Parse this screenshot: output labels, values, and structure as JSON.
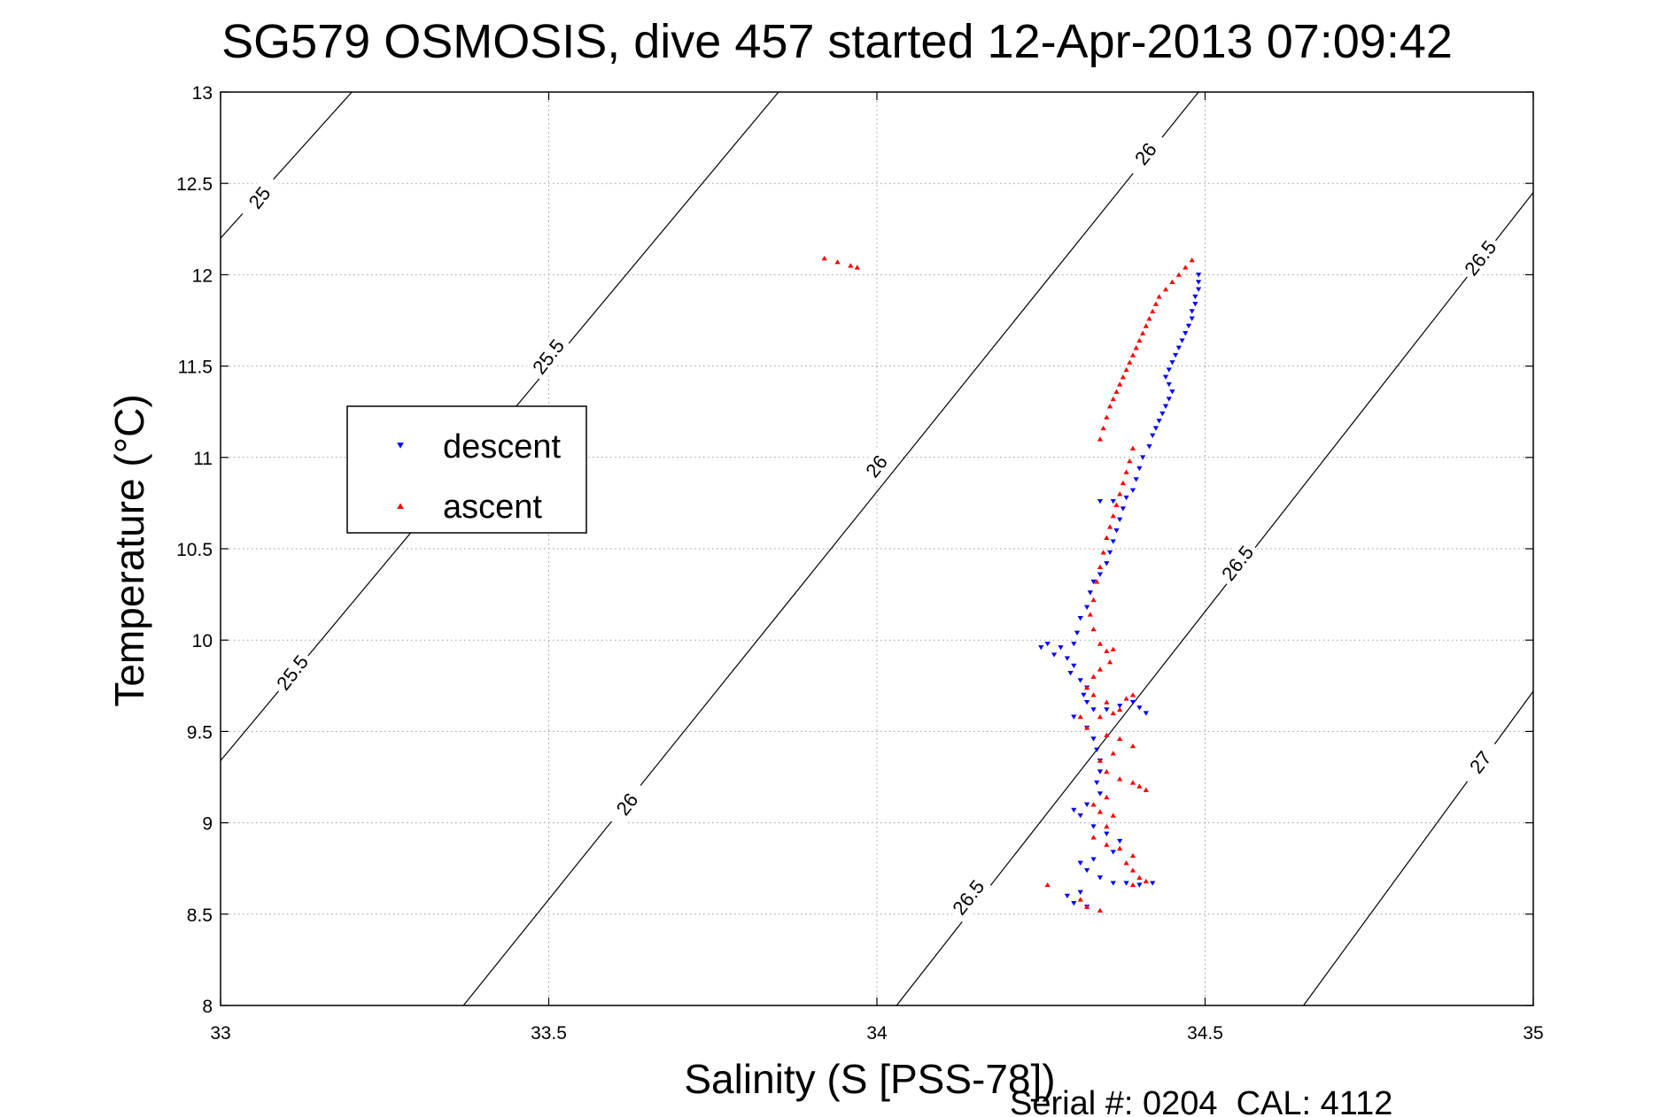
{
  "chart_data": {
    "type": "scatter",
    "title": "SG579 OSMOSIS, dive 457 started 12-Apr-2013 07:09:42",
    "xlabel": "Salinity (S [PSS-78])",
    "ylabel": "Temperature (°C)",
    "footer": "Serial #: 0204  CAL: 4112",
    "xlim": [
      33,
      35
    ],
    "ylim": [
      8,
      13
    ],
    "xticks": [
      33,
      33.5,
      34,
      34.5,
      35
    ],
    "xtick_labels": [
      "33",
      "33.5",
      "34",
      "34.5",
      "35"
    ],
    "yticks": [
      8,
      8.5,
      9,
      9.5,
      10,
      10.5,
      11,
      11.5,
      12,
      12.5,
      13
    ],
    "ytick_labels": [
      "8",
      "8.5",
      "9",
      "9.5",
      "10",
      "10.5",
      "11",
      "11.5",
      "12",
      "12.5",
      "13"
    ],
    "grid": true,
    "legend": {
      "placement": "upper-left"
    },
    "series": [
      {
        "name": "descent",
        "color": "#0000ff",
        "marker": "triangle-down",
        "points": [
          [
            34.49,
            12.0
          ],
          [
            34.49,
            11.96
          ],
          [
            34.49,
            11.92
          ],
          [
            34.485,
            11.88
          ],
          [
            34.485,
            11.84
          ],
          [
            34.48,
            11.8
          ],
          [
            34.48,
            11.76
          ],
          [
            34.475,
            11.72
          ],
          [
            34.47,
            11.68
          ],
          [
            34.465,
            11.64
          ],
          [
            34.46,
            11.6
          ],
          [
            34.455,
            11.56
          ],
          [
            34.45,
            11.52
          ],
          [
            34.445,
            11.48
          ],
          [
            34.44,
            11.44
          ],
          [
            34.445,
            11.4
          ],
          [
            34.45,
            11.36
          ],
          [
            34.445,
            11.32
          ],
          [
            34.44,
            11.28
          ],
          [
            34.435,
            11.24
          ],
          [
            34.43,
            11.2
          ],
          [
            34.425,
            11.16
          ],
          [
            34.42,
            11.12
          ],
          [
            34.415,
            11.06
          ],
          [
            34.405,
            11.0
          ],
          [
            34.4,
            10.94
          ],
          [
            34.395,
            10.88
          ],
          [
            34.39,
            10.82
          ],
          [
            34.38,
            10.78
          ],
          [
            34.36,
            10.76
          ],
          [
            34.34,
            10.76
          ],
          [
            34.375,
            10.72
          ],
          [
            34.37,
            10.66
          ],
          [
            34.365,
            10.6
          ],
          [
            34.36,
            10.54
          ],
          [
            34.355,
            10.48
          ],
          [
            34.35,
            10.42
          ],
          [
            34.34,
            10.36
          ],
          [
            34.33,
            10.32
          ],
          [
            34.325,
            10.26
          ],
          [
            34.32,
            10.18
          ],
          [
            34.31,
            10.12
          ],
          [
            34.305,
            10.04
          ],
          [
            34.3,
            9.98
          ],
          [
            34.28,
            9.96
          ],
          [
            34.26,
            9.98
          ],
          [
            34.25,
            9.96
          ],
          [
            34.27,
            9.92
          ],
          [
            34.29,
            9.9
          ],
          [
            34.3,
            9.86
          ],
          [
            34.295,
            9.82
          ],
          [
            34.31,
            9.78
          ],
          [
            34.32,
            9.74
          ],
          [
            34.315,
            9.7
          ],
          [
            34.32,
            9.66
          ],
          [
            34.33,
            9.62
          ],
          [
            34.35,
            9.62
          ],
          [
            34.37,
            9.64
          ],
          [
            34.39,
            9.66
          ],
          [
            34.4,
            9.63
          ],
          [
            34.41,
            9.6
          ],
          [
            34.3,
            9.58
          ],
          [
            34.32,
            9.52
          ],
          [
            34.33,
            9.46
          ],
          [
            34.335,
            9.4
          ],
          [
            34.34,
            9.34
          ],
          [
            34.34,
            9.28
          ],
          [
            34.335,
            9.22
          ],
          [
            34.34,
            9.16
          ],
          [
            34.32,
            9.1
          ],
          [
            34.3,
            9.07
          ],
          [
            34.31,
            9.04
          ],
          [
            34.33,
            8.98
          ],
          [
            34.35,
            8.94
          ],
          [
            34.37,
            8.9
          ],
          [
            34.36,
            8.84
          ],
          [
            34.33,
            8.8
          ],
          [
            34.31,
            8.78
          ],
          [
            34.32,
            8.74
          ],
          [
            34.34,
            8.7
          ],
          [
            34.36,
            8.67
          ],
          [
            34.38,
            8.67
          ],
          [
            34.4,
            8.66
          ],
          [
            34.42,
            8.67
          ],
          [
            34.31,
            8.62
          ],
          [
            34.29,
            8.6
          ],
          [
            34.3,
            8.56
          ],
          [
            34.32,
            8.54
          ]
        ]
      },
      {
        "name": "ascent",
        "color": "#ff0000",
        "marker": "triangle-up",
        "points": [
          [
            33.92,
            12.09
          ],
          [
            33.94,
            12.07
          ],
          [
            33.96,
            12.05
          ],
          [
            33.97,
            12.04
          ],
          [
            34.48,
            12.08
          ],
          [
            34.47,
            12.04
          ],
          [
            34.46,
            12.0
          ],
          [
            34.45,
            11.96
          ],
          [
            34.44,
            11.92
          ],
          [
            34.43,
            11.88
          ],
          [
            34.425,
            11.84
          ],
          [
            34.42,
            11.8
          ],
          [
            34.415,
            11.76
          ],
          [
            34.41,
            11.72
          ],
          [
            34.405,
            11.68
          ],
          [
            34.4,
            11.64
          ],
          [
            34.395,
            11.6
          ],
          [
            34.39,
            11.56
          ],
          [
            34.385,
            11.52
          ],
          [
            34.38,
            11.48
          ],
          [
            34.375,
            11.44
          ],
          [
            34.37,
            11.4
          ],
          [
            34.365,
            11.36
          ],
          [
            34.36,
            11.32
          ],
          [
            34.355,
            11.28
          ],
          [
            34.35,
            11.22
          ],
          [
            34.345,
            11.16
          ],
          [
            34.34,
            11.1
          ],
          [
            34.39,
            11.05
          ],
          [
            34.385,
            10.98
          ],
          [
            34.38,
            10.92
          ],
          [
            34.375,
            10.86
          ],
          [
            34.37,
            10.8
          ],
          [
            34.365,
            10.74
          ],
          [
            34.36,
            10.68
          ],
          [
            34.355,
            10.62
          ],
          [
            34.35,
            10.56
          ],
          [
            34.345,
            10.48
          ],
          [
            34.34,
            10.4
          ],
          [
            34.335,
            10.32
          ],
          [
            34.33,
            10.22
          ],
          [
            34.325,
            10.14
          ],
          [
            34.33,
            10.06
          ],
          [
            34.34,
            9.98
          ],
          [
            34.35,
            9.94
          ],
          [
            34.36,
            9.95
          ],
          [
            34.355,
            9.88
          ],
          [
            34.34,
            9.84
          ],
          [
            34.33,
            9.8
          ],
          [
            34.32,
            9.74
          ],
          [
            34.33,
            9.7
          ],
          [
            34.35,
            9.66
          ],
          [
            34.38,
            9.68
          ],
          [
            34.39,
            9.7
          ],
          [
            34.37,
            9.62
          ],
          [
            34.36,
            9.6
          ],
          [
            34.34,
            9.58
          ],
          [
            34.31,
            9.58
          ],
          [
            34.32,
            9.52
          ],
          [
            34.35,
            9.48
          ],
          [
            34.37,
            9.46
          ],
          [
            34.39,
            9.42
          ],
          [
            34.36,
            9.38
          ],
          [
            34.34,
            9.34
          ],
          [
            34.35,
            9.28
          ],
          [
            34.37,
            9.24
          ],
          [
            34.39,
            9.22
          ],
          [
            34.4,
            9.2
          ],
          [
            34.41,
            9.18
          ],
          [
            34.35,
            9.14
          ],
          [
            34.33,
            9.1
          ],
          [
            34.34,
            9.06
          ],
          [
            34.36,
            9.04
          ],
          [
            34.35,
            8.98
          ],
          [
            34.33,
            8.92
          ],
          [
            34.35,
            8.88
          ],
          [
            34.37,
            8.86
          ],
          [
            34.39,
            8.82
          ],
          [
            34.38,
            8.78
          ],
          [
            34.39,
            8.74
          ],
          [
            34.4,
            8.7
          ],
          [
            34.41,
            8.68
          ],
          [
            34.39,
            8.66
          ],
          [
            34.26,
            8.66
          ],
          [
            34.31,
            8.58
          ],
          [
            34.32,
            8.54
          ],
          [
            34.34,
            8.52
          ]
        ]
      }
    ],
    "contours": [
      {
        "label": "25",
        "points": [
          [
            33.0,
            12.2
          ],
          [
            33.2,
            13.0
          ]
        ],
        "label_at": [
          33.06,
          12.42
        ]
      },
      {
        "label": "25.5",
        "points": [
          [
            33.0,
            9.34
          ],
          [
            33.85,
            13.0
          ]
        ],
        "label_at": [
          33.5,
          11.55
        ]
      },
      {
        "label": "25.5",
        "points": [],
        "label_at": [
          33.11,
          9.82
        ]
      },
      {
        "label": "26",
        "points": [
          [
            33.37,
            8.0
          ],
          [
            34.49,
            13.0
          ]
        ],
        "label_at": [
          34.0,
          10.95
        ]
      },
      {
        "label": "26",
        "points": [],
        "label_at": [
          33.62,
          9.1
        ]
      },
      {
        "label": "26",
        "points": [],
        "label_at": [
          34.41,
          12.66
        ]
      },
      {
        "label": "26.5",
        "points": [
          [
            34.03,
            8.0
          ],
          [
            35.0,
            12.45
          ]
        ],
        "label_at": [
          34.55,
          10.42
        ]
      },
      {
        "label": "26.5",
        "points": [],
        "label_at": [
          34.14,
          8.59
        ]
      },
      {
        "label": "26.5",
        "points": [],
        "label_at": [
          34.92,
          12.09
        ]
      },
      {
        "label": "27",
        "points": [
          [
            34.65,
            8.0
          ],
          [
            35.0,
            9.72
          ]
        ],
        "label_at": [
          34.92,
          9.33
        ]
      }
    ]
  }
}
